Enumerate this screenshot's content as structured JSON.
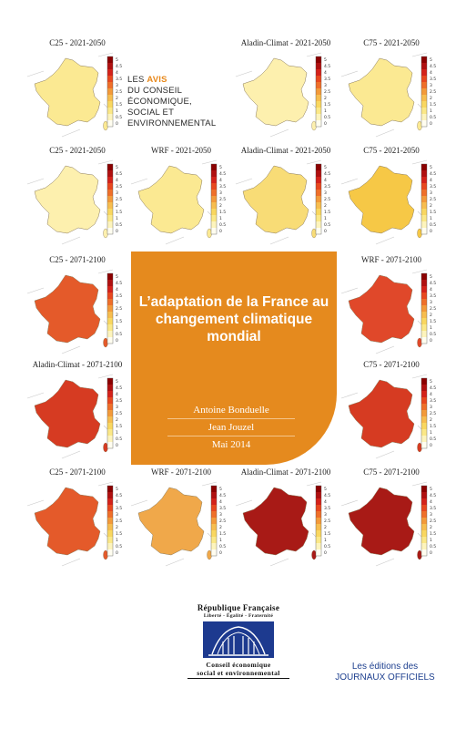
{
  "series_label": {
    "line1_prefix": "LES ",
    "line1_accent": "AVIS",
    "line2": "DU CONSEIL",
    "line3": "ÉCONOMIQUE,",
    "line4": "SOCIAL ET",
    "line5": "ENVIRONNEMENTAL"
  },
  "cover": {
    "title": "L’adaptation de la France au changement climatique mondial",
    "author1": "Antoine Bonduelle",
    "author2": "Jean Jouzel",
    "date": "Mai 2014"
  },
  "legend_ticks": [
    "5",
    "4.5",
    "4",
    "3.5",
    "3",
    "2.5",
    "2",
    "1.5",
    "1",
    "0.5",
    "0"
  ],
  "colors": {
    "accent_orange": "#e58a1e",
    "brand_blue": "#1d3a8f",
    "light_yellow": "#fbe992",
    "pale_yellow": "#fdf0ae",
    "yellow": "#f9d45c",
    "orange_warm": "#f0a84a",
    "red_orange": "#e45a2a",
    "red": "#d63b22",
    "dark_red": "#a81a16"
  },
  "maps": [
    {
      "caption": "C25 - 2021-2050",
      "fill": "#fbe992"
    },
    {
      "caption": "Aladin-Climat - 2021-2050",
      "fill": "#fdf0ae"
    },
    {
      "caption": "C75 - 2021-2050",
      "fill": "#fbe992"
    },
    {
      "caption": "C25 - 2021-2050",
      "fill": "#fdf0ae"
    },
    {
      "caption": "WRF - 2021-2050",
      "fill": "#fbe992"
    },
    {
      "caption": "Aladin-Climat - 2021-2050",
      "fill": "#f8dc76"
    },
    {
      "caption": "C75 - 2021-2050",
      "fill": "#f6c846"
    },
    {
      "caption": "C25 - 2071-2100",
      "fill": "#e45a2a"
    },
    {
      "caption": "WRF - 2071-2100",
      "fill": "#e0482a"
    },
    {
      "caption": "Aladin-Climat - 2071-2100",
      "fill": "#d63b22"
    },
    {
      "caption": "C75 - 2071-2100",
      "fill": "#d63b22"
    },
    {
      "caption": "C25 - 2071-2100",
      "fill": "#e45a2a"
    },
    {
      "caption": "WRF - 2071-2100",
      "fill": "#f0a84a"
    },
    {
      "caption": "Aladin-Climat - 2071-2100",
      "fill": "#a81a16"
    },
    {
      "caption": "C75 - 2071-2100",
      "fill": "#a81a16"
    }
  ],
  "logo": {
    "republic": "République Française",
    "motto": "Liberté - Égalité - Fraternité",
    "council_line1": "Conseil économique",
    "council_line2": "social et environnemental"
  },
  "publisher": {
    "line1": "Les éditions des",
    "line2": "JOURNAUX OFFICIELS"
  }
}
